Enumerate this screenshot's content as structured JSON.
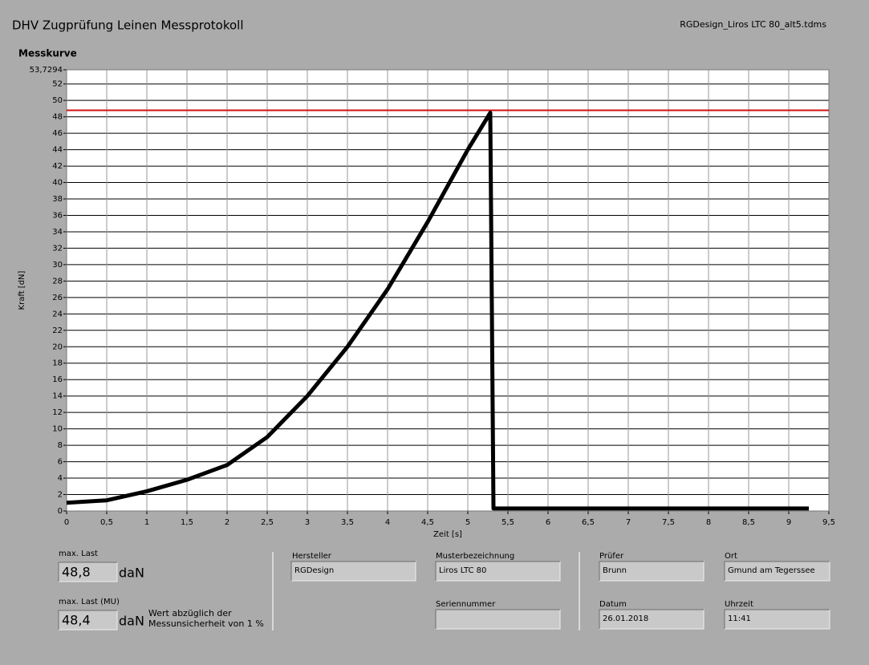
{
  "header": {
    "title": "DHV Zugprüfung Leinen Messprotokoll",
    "file": "RGDesign_Liros LTC 80_alt5.tdms"
  },
  "chart_data": {
    "type": "line",
    "title": "Messkurve",
    "y_label": "Kraft [dN]",
    "x_label": "Zeit [s]",
    "xlim": [
      0,
      9.5
    ],
    "ylim": [
      0,
      53.7294
    ],
    "xticks": [
      0,
      {
        "value": 0.5,
        "label": "0,5"
      },
      1,
      {
        "value": 1.5,
        "label": "1,5"
      },
      2,
      {
        "value": 2.5,
        "label": "2,5"
      },
      3,
      {
        "value": 3.5,
        "label": "3,5"
      },
      4,
      {
        "value": 4.5,
        "label": "4,5"
      },
      5,
      {
        "value": 5.5,
        "label": "5,5"
      },
      6,
      {
        "value": 6.5,
        "label": "6,5"
      },
      7,
      {
        "value": 7.5,
        "label": "7,5"
      },
      8,
      {
        "value": 8.5,
        "label": "8,5"
      },
      9,
      {
        "value": 9.5,
        "label": "9,5"
      }
    ],
    "yticks": [
      0,
      2,
      4,
      6,
      8,
      10,
      12,
      14,
      16,
      18,
      20,
      22,
      24,
      26,
      28,
      30,
      32,
      34,
      36,
      38,
      40,
      42,
      44,
      46,
      48,
      50,
      52,
      {
        "value": 53.7294,
        "label": "53,7294"
      }
    ],
    "grid": true,
    "series": [
      {
        "color": "#000000",
        "x": [
          0,
          0.5,
          1,
          1.5,
          2,
          2.5,
          3,
          3.5,
          4,
          4.5,
          5,
          5.28,
          5.32,
          6,
          7,
          8,
          9.25
        ],
        "values": [
          1,
          1.3,
          2.4,
          3.8,
          5.6,
          9,
          14,
          20,
          27,
          35.2,
          44,
          48.5,
          0.3,
          0.3,
          0.3,
          0.3,
          0.3
        ]
      }
    ],
    "reference_line": {
      "value": 48.8,
      "color": "#d01010"
    }
  },
  "fields": [
    {
      "label": "max. Last",
      "value": "48,8",
      "unit": "daN"
    },
    {
      "label": "max. Last (MU)",
      "value": "48,4",
      "unit": "daN",
      "note": [
        "Wert abzüglich der",
        "Messunsicherheit von 1 %"
      ]
    },
    {
      "label": "Hersteller",
      "value": "RGDesign"
    },
    {
      "label": "Musterbezeichnung",
      "value": "Liros LTC 80"
    },
    {
      "label": "Seriennummer"
    },
    {
      "label": "Prüfer",
      "value": "Brunn"
    },
    {
      "label": "Ort",
      "value": "Gmund am Tegerssee"
    },
    {
      "label": "Datum",
      "value": "26.01.2018"
    },
    {
      "label": "Uhrzeit",
      "value": "11:41"
    }
  ]
}
